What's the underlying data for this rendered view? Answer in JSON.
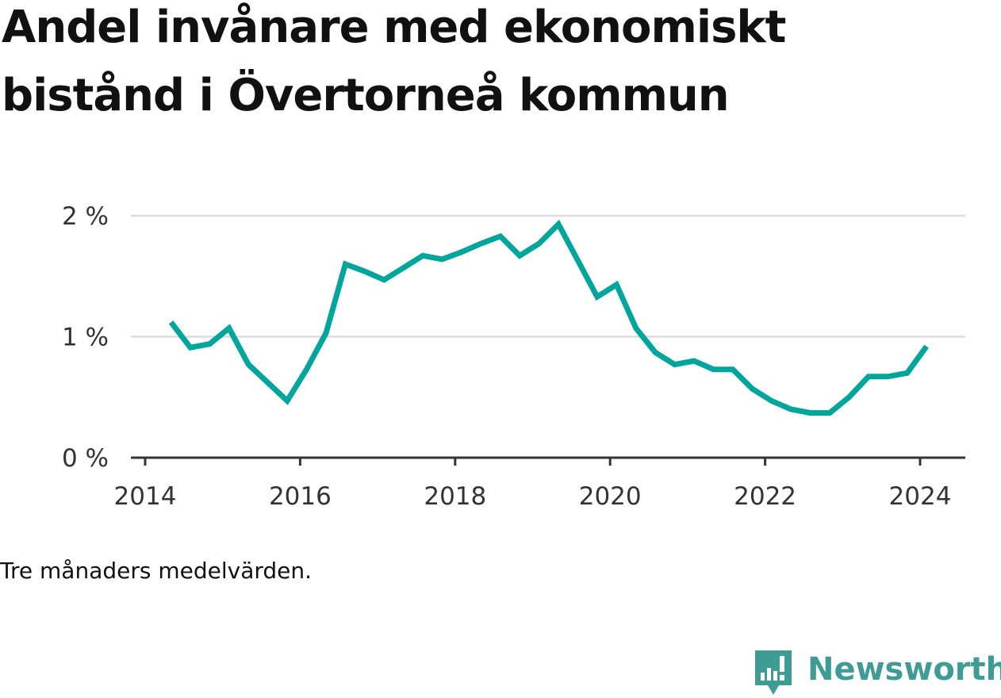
{
  "header": {
    "title": "Andel invånare med ekonomiskt bistånd i Övertorneå kommun"
  },
  "footer": {
    "note": "Tre månaders medelvärden.",
    "brand": "Newsworthy"
  },
  "colors": {
    "line": "#00a59b",
    "grid": "#dcdcdc",
    "axis": "#333333",
    "brand": "#3f9c95"
  },
  "icons": {
    "brand_logo": "newsworthy-logo-icon"
  },
  "chart_data": {
    "type": "line",
    "title": "Andel invånare med ekonomiskt bistånd i Övertorneå kommun",
    "xlabel": "",
    "ylabel": "",
    "xlim": [
      "2014-01-01",
      "2024-06-01"
    ],
    "ylim": [
      0,
      2
    ],
    "grid": true,
    "y_ticks": [
      {
        "value": 0,
        "label": "0 %"
      },
      {
        "value": 1,
        "label": "1 %"
      },
      {
        "value": 2,
        "label": "2 %"
      }
    ],
    "x_ticks": [
      {
        "value": "2014-01-01",
        "label": "2014"
      },
      {
        "value": "2016-01-01",
        "label": "2016"
      },
      {
        "value": "2018-01-01",
        "label": "2018"
      },
      {
        "value": "2020-01-01",
        "label": "2020"
      },
      {
        "value": "2022-01-01",
        "label": "2022"
      },
      {
        "value": "2024-01-01",
        "label": "2024"
      }
    ],
    "series": [
      {
        "values": [
          {
            "x": "2014-05-01",
            "y": 1.12
          },
          {
            "x": "2014-08-01",
            "y": 0.91
          },
          {
            "x": "2014-11-01",
            "y": 0.94
          },
          {
            "x": "2015-02-01",
            "y": 1.07
          },
          {
            "x": "2015-05-01",
            "y": 0.77
          },
          {
            "x": "2015-08-01",
            "y": 0.62
          },
          {
            "x": "2015-11-01",
            "y": 0.47
          },
          {
            "x": "2016-02-01",
            "y": 0.73
          },
          {
            "x": "2016-05-01",
            "y": 1.03
          },
          {
            "x": "2016-08-01",
            "y": 1.6
          },
          {
            "x": "2016-11-01",
            "y": 1.54
          },
          {
            "x": "2017-02-01",
            "y": 1.47
          },
          {
            "x": "2017-05-01",
            "y": 1.57
          },
          {
            "x": "2017-08-01",
            "y": 1.67
          },
          {
            "x": "2017-11-01",
            "y": 1.64
          },
          {
            "x": "2018-02-01",
            "y": 1.7
          },
          {
            "x": "2018-05-01",
            "y": 1.77
          },
          {
            "x": "2018-08-01",
            "y": 1.83
          },
          {
            "x": "2018-11-01",
            "y": 1.67
          },
          {
            "x": "2019-02-01",
            "y": 1.77
          },
          {
            "x": "2019-05-01",
            "y": 1.93
          },
          {
            "x": "2019-08-01",
            "y": 1.63
          },
          {
            "x": "2019-11-01",
            "y": 1.33
          },
          {
            "x": "2020-02-01",
            "y": 1.43
          },
          {
            "x": "2020-05-01",
            "y": 1.07
          },
          {
            "x": "2020-08-01",
            "y": 0.87
          },
          {
            "x": "2020-11-01",
            "y": 0.77
          },
          {
            "x": "2021-02-01",
            "y": 0.8
          },
          {
            "x": "2021-05-01",
            "y": 0.73
          },
          {
            "x": "2021-08-01",
            "y": 0.73
          },
          {
            "x": "2021-11-01",
            "y": 0.57
          },
          {
            "x": "2022-02-01",
            "y": 0.47
          },
          {
            "x": "2022-05-01",
            "y": 0.4
          },
          {
            "x": "2022-08-01",
            "y": 0.37
          },
          {
            "x": "2022-11-01",
            "y": 0.37
          },
          {
            "x": "2023-02-01",
            "y": 0.5
          },
          {
            "x": "2023-05-01",
            "y": 0.67
          },
          {
            "x": "2023-08-01",
            "y": 0.67
          },
          {
            "x": "2023-11-01",
            "y": 0.7
          },
          {
            "x": "2024-02-01",
            "y": 0.92
          }
        ]
      }
    ]
  }
}
